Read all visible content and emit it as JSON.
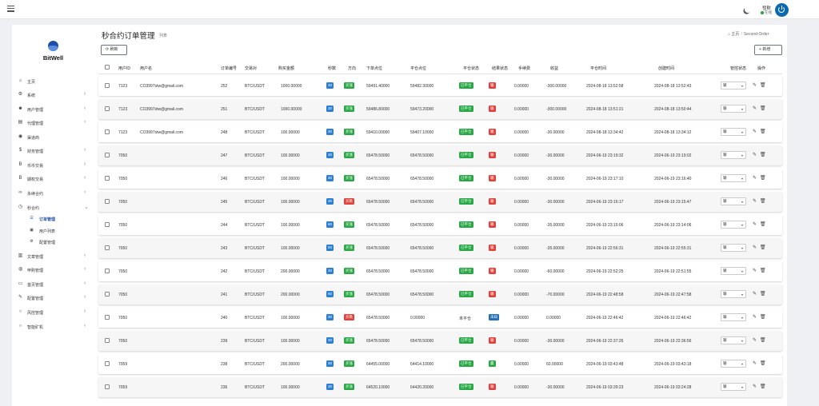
{
  "header": {
    "user_name": "發財",
    "user_status": "在线"
  },
  "brand": {
    "name": "BitWell"
  },
  "sidebar": {
    "items": [
      {
        "label": "主页",
        "icon": "home-icon",
        "has_arrow": false
      },
      {
        "label": "系统",
        "icon": "gear-icon",
        "has_arrow": true
      },
      {
        "label": "用户管理",
        "icon": "user-icon",
        "has_arrow": true
      },
      {
        "label": "代理管理",
        "icon": "id-card-icon",
        "has_arrow": true
      },
      {
        "label": "渠道商",
        "icon": "user-circle-icon",
        "has_arrow": false
      },
      {
        "label": "财务管理",
        "icon": "dollar-icon",
        "has_arrow": true
      },
      {
        "label": "币币交易",
        "icon": "bitcoin-icon",
        "has_arrow": true
      },
      {
        "label": "期权交易",
        "icon": "bitcoin-icon",
        "has_arrow": true
      },
      {
        "label": "永续合约",
        "icon": "chain-icon",
        "has_arrow": true
      },
      {
        "label": "秒合约",
        "icon": "clock-icon",
        "has_arrow": true,
        "expanded": true
      },
      {
        "label": "文章管理",
        "icon": "book-icon",
        "has_arrow": true
      },
      {
        "label": "申购管理",
        "icon": "globe-icon",
        "has_arrow": true
      },
      {
        "label": "首页管理",
        "icon": "monitor-icon",
        "has_arrow": true
      },
      {
        "label": "配置管理",
        "icon": "wrench-icon",
        "has_arrow": true
      },
      {
        "label": "风控管理",
        "icon": "circle-icon",
        "has_arrow": true
      },
      {
        "label": "智能矿机",
        "icon": "circle-icon",
        "has_arrow": true
      }
    ],
    "sub_items": [
      {
        "label": "订单管理",
        "icon": "list-icon",
        "active": true
      },
      {
        "label": "用户列表",
        "icon": "user-square-icon",
        "active": false
      },
      {
        "label": "配置管理",
        "icon": "gear-icon",
        "active": false
      }
    ]
  },
  "page": {
    "title": "秒合约订单管理",
    "subtitle": "列表",
    "breadcrumb": [
      "主页",
      "Second-Order"
    ],
    "refresh_label": "刷新",
    "add_label": "新增"
  },
  "table": {
    "columns": [
      "用户ID",
      "用户名",
      "订单编号",
      "交易对",
      "购买金额",
      "秒数",
      "方向",
      "下单点位",
      "平仓点位",
      "平仓状态",
      "结果状态",
      "手续费",
      "收益",
      "平仓时间",
      "创建时间",
      "管控状态",
      "操作"
    ],
    "rows": [
      {
        "uid": "7123",
        "username": "CO3997stw@gmail.com",
        "order_no": "252",
        "pair": "BTC/USDT",
        "amount": "1000.00000",
        "seconds": "30",
        "direction": "买涨",
        "open_price": "59491.40000",
        "close_price": "59482.30000",
        "close_status": "已平仓",
        "result": "输",
        "fee": "0.00000",
        "profit": "-300.00000",
        "close_time": "2024-08-18 13:52:58",
        "create_time": "2024-08-18 13:52:43",
        "control": "输"
      },
      {
        "uid": "7123",
        "username": "CO3997stw@gmail.com",
        "order_no": "251",
        "pair": "BTC/USDT",
        "amount": "1000.00000",
        "seconds": "30",
        "direction": "买涨",
        "open_price": "59486.80000",
        "close_price": "59473.20000",
        "close_status": "已平仓",
        "result": "输",
        "fee": "0.00000",
        "profit": "-300.00000",
        "close_time": "2024-08-18 13:51:21",
        "create_time": "2024-08-18 13:50:44",
        "control": "输"
      },
      {
        "uid": "7123",
        "username": "CO3997stw@gmail.com",
        "order_no": "248",
        "pair": "BTC/USDT",
        "amount": "100.00000",
        "seconds": "30",
        "direction": "买涨",
        "open_price": "59410.00000",
        "close_price": "59407.10000",
        "close_status": "已平仓",
        "result": "输",
        "fee": "0.00000",
        "profit": "-30.00000",
        "close_time": "2024-08-18 13:34:42",
        "create_time": "2024-08-18 13:34:12",
        "control": "输"
      },
      {
        "uid": "7050",
        "username": "",
        "order_no": "247",
        "pair": "BTC/USDT",
        "amount": "100.00000",
        "seconds": "30",
        "direction": "买涨",
        "open_price": "65478.50000",
        "close_price": "65478.50000",
        "close_status": "已平仓",
        "result": "输",
        "fee": "0.00000",
        "profit": "-30.00000",
        "close_time": "2024-06-19 23:19:32",
        "create_time": "2024-06-19 23:19:02",
        "control": "输"
      },
      {
        "uid": "7050",
        "username": "",
        "order_no": "246",
        "pair": "BTC/USDT",
        "amount": "100.00000",
        "seconds": "30",
        "direction": "买涨",
        "open_price": "65478.50000",
        "close_price": "65478.50000",
        "close_status": "已平仓",
        "result": "输",
        "fee": "0.00000",
        "profit": "-30.00000",
        "close_time": "2024-06-19 23:17:10",
        "create_time": "2024-06-19 23:16:40",
        "control": "输"
      },
      {
        "uid": "7050",
        "username": "",
        "order_no": "245",
        "pair": "BTC/USDT",
        "amount": "100.00000",
        "seconds": "30",
        "direction": "买跌",
        "open_price": "65478.50000",
        "close_price": "65478.50000",
        "close_status": "已平仓",
        "result": "输",
        "fee": "0.00000",
        "profit": "-30.00000",
        "close_time": "2024-06-19 23:16:17",
        "create_time": "2024-06-19 23:15:47",
        "control": "输"
      },
      {
        "uid": "7050",
        "username": "",
        "order_no": "244",
        "pair": "BTC/USDT",
        "amount": "100.00000",
        "seconds": "60",
        "direction": "买涨",
        "open_price": "65478.50000",
        "close_price": "65478.50000",
        "close_status": "已平仓",
        "result": "输",
        "fee": "0.00000",
        "profit": "-35.00000",
        "close_time": "2024-06-19 23:15:06",
        "create_time": "2024-06-19 23:14:06",
        "control": "输"
      },
      {
        "uid": "7050",
        "username": "",
        "order_no": "243",
        "pair": "BTC/USDT",
        "amount": "100.00000",
        "seconds": "60",
        "direction": "买涨",
        "open_price": "65478.50000",
        "close_price": "65478.50000",
        "close_status": "已平仓",
        "result": "输",
        "fee": "0.00000",
        "profit": "-35.00000",
        "close_time": "2024-06-19 22:56:31",
        "create_time": "2024-06-19 22:55:31",
        "control": "输"
      },
      {
        "uid": "7050",
        "username": "",
        "order_no": "242",
        "pair": "BTC/USDT",
        "amount": "200.00000",
        "seconds": "30",
        "direction": "买涨",
        "open_price": "65478.50000",
        "close_price": "65478.50000",
        "close_status": "已平仓",
        "result": "输",
        "fee": "0.00000",
        "profit": "-60.00000",
        "close_time": "2024-06-19 22:52:25",
        "create_time": "2024-06-19 22:51:55",
        "control": "输"
      },
      {
        "uid": "7050",
        "username": "",
        "order_no": "241",
        "pair": "BTC/USDT",
        "amount": "200.00000",
        "seconds": "60",
        "direction": "买涨",
        "open_price": "65478.50000",
        "close_price": "65478.50000",
        "close_status": "已平仓",
        "result": "输",
        "fee": "0.00000",
        "profit": "-70.00000",
        "close_time": "2024-06-19 22:48:58",
        "create_time": "2024-06-19 22:47:58",
        "control": "输"
      },
      {
        "uid": "7050",
        "username": "",
        "order_no": "240",
        "pair": "BTC/USDT",
        "amount": "100.00000",
        "seconds": "30",
        "direction": "买跌",
        "open_price": "65478.50000",
        "close_price": "0.00000",
        "close_status": "未平仓",
        "result": "未知",
        "fee": "0.00000",
        "profit": "0.00000",
        "close_time": "2024-06-19 22:46:42",
        "create_time": "2024-06-19 22:46:42",
        "control": "输"
      },
      {
        "uid": "7050",
        "username": "",
        "order_no": "239",
        "pair": "BTC/USDT",
        "amount": "100.00000",
        "seconds": "30",
        "direction": "买涨",
        "open_price": "65478.50000",
        "close_price": "65478.50000",
        "close_status": "已平仓",
        "result": "输",
        "fee": "0.00000",
        "profit": "-30.00000",
        "close_time": "2024-06-19 22:37:26",
        "create_time": "2024-06-19 22:36:56",
        "control": "输"
      },
      {
        "uid": "7059",
        "username": "",
        "order_no": "238",
        "pair": "BTC/USDT",
        "amount": "200.00000",
        "seconds": "30",
        "direction": "买涨",
        "open_price": "64455.00000",
        "close_price": "64414.10000",
        "close_status": "已平仓",
        "result": "赢",
        "fee": "0.00000",
        "profit": "60.00000",
        "close_time": "2024-06-19 03:43:48",
        "create_time": "2024-06-19 03:43:18",
        "control": "输"
      },
      {
        "uid": "7059",
        "username": "",
        "order_no": "236",
        "pair": "BTC/USDT",
        "amount": "100.00000",
        "seconds": "30",
        "direction": "买涨",
        "open_price": "64520.10000",
        "close_price": "64420.20000",
        "close_status": "已平仓",
        "result": "输",
        "fee": "0.00000",
        "profit": "-30.00000",
        "close_time": "2024-06-19 03:39:23",
        "create_time": "2024-06-19 03:24:28",
        "control": "输"
      }
    ]
  },
  "colors": {
    "primary": "#1e4fa8",
    "badge_blue": "#2d7fd3",
    "badge_green": "#28a745",
    "badge_red": "#e0413b",
    "badge_navy": "#1e6fb8"
  }
}
